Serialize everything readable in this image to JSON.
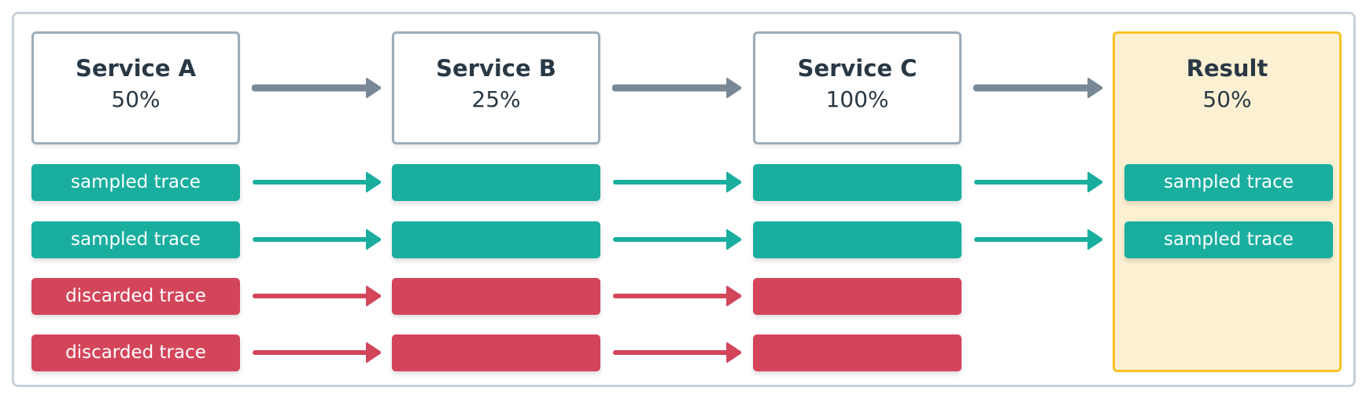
{
  "colors": {
    "sampled": "#1aae9f",
    "discarded": "#d3455b",
    "arrow": "#788896",
    "result_border": "#f7c325",
    "result_bg": "#fcf0d2",
    "text": "#293845"
  },
  "services": [
    {
      "name": "Service A",
      "rate": "50%"
    },
    {
      "name": "Service B",
      "rate": "25%"
    },
    {
      "name": "Service C",
      "rate": "100%"
    }
  ],
  "result": {
    "name": "Result",
    "rate": "50%"
  },
  "traces": [
    {
      "label": "sampled trace",
      "status": "sampled",
      "result_label": "sampled trace"
    },
    {
      "label": "sampled trace",
      "status": "sampled",
      "result_label": "sampled trace"
    },
    {
      "label": "discarded trace",
      "status": "discarded"
    },
    {
      "label": "discarded trace",
      "status": "discarded"
    }
  ]
}
